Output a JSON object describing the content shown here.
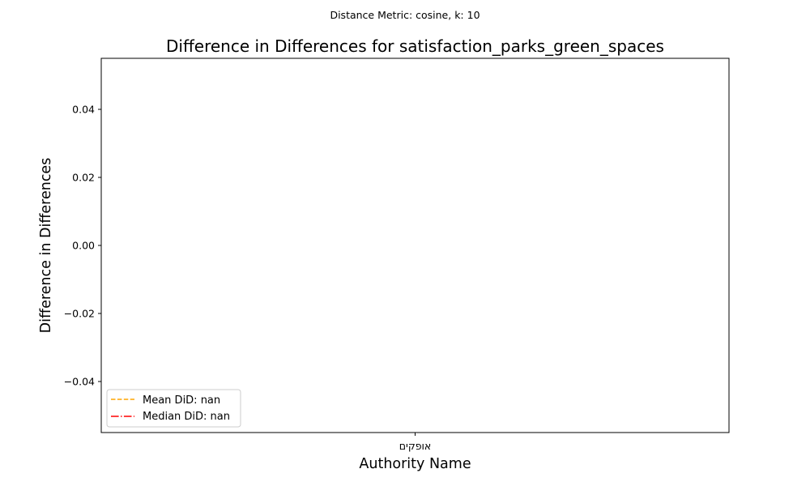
{
  "suptitle": "Distance Metric: cosine, k: 10",
  "chart_data": {
    "type": "bar",
    "title": "Difference in Differences for satisfaction_parks_green_spaces",
    "xlabel": "Authority Name",
    "ylabel": "Difference in Differences",
    "categories": [
      "אופקים"
    ],
    "values": [
      null
    ],
    "ylim": [
      -0.055,
      0.055
    ],
    "yticks": [
      -0.04,
      -0.02,
      0.0,
      0.02,
      0.04
    ],
    "ytick_labels": [
      "−0.04",
      "−0.02",
      "0.00",
      "0.02",
      "0.04"
    ],
    "grid": false,
    "legend_position": "lower-left",
    "legend": [
      {
        "label": "Mean DiD: nan",
        "color": "#ffa500",
        "style": "dashed"
      },
      {
        "label": "Median DiD: nan",
        "color": "#ff0000",
        "style": "dashdot"
      }
    ]
  }
}
